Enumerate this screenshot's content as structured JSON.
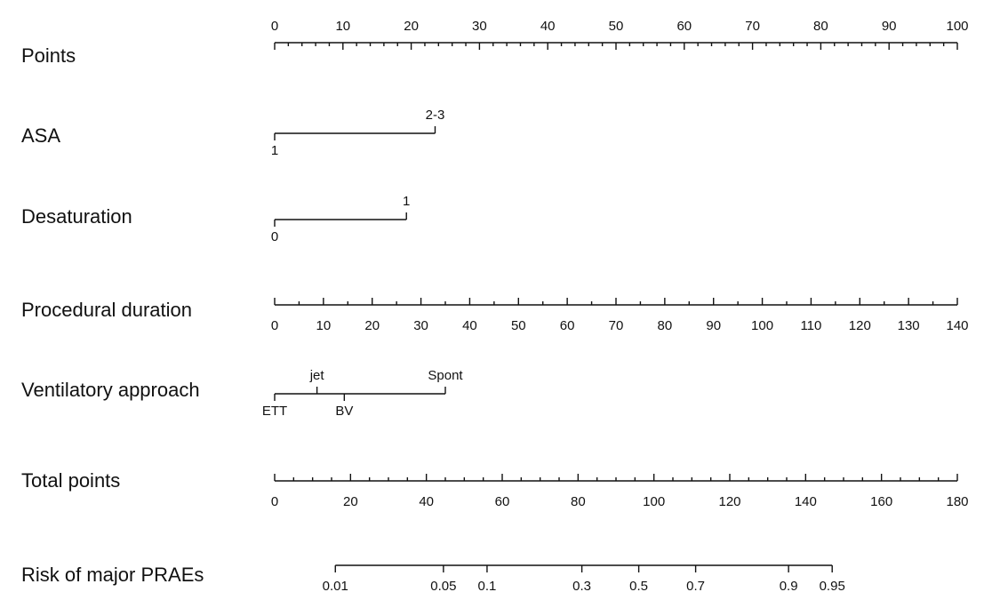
{
  "chart_data": {
    "type": "nomogram",
    "title": "",
    "rows": [
      {
        "label": "Points",
        "scale": "linear",
        "domain": [
          0,
          100
        ],
        "major_ticks": [
          0,
          10,
          20,
          30,
          40,
          50,
          60,
          70,
          80,
          90,
          100
        ],
        "minor_step": 2,
        "labels_side": "above"
      },
      {
        "label": "ASA",
        "kind": "categorical",
        "categories": [
          {
            "name": "1",
            "points": 0,
            "side": "below"
          },
          {
            "name": "2-3",
            "points": 23.5,
            "side": "above"
          }
        ]
      },
      {
        "label": "Desaturation",
        "kind": "categorical",
        "categories": [
          {
            "name": "0",
            "points": 0,
            "side": "below"
          },
          {
            "name": "1",
            "points": 19.3,
            "side": "above"
          }
        ]
      },
      {
        "label": "Procedural duration",
        "scale": "linear",
        "domain": [
          0,
          140
        ],
        "major_ticks": [
          0,
          10,
          20,
          30,
          40,
          50,
          60,
          70,
          80,
          90,
          100,
          110,
          120,
          130,
          140
        ],
        "minor_step": 5,
        "labels_side": "below"
      },
      {
        "label": "Ventilatory approach",
        "kind": "categorical",
        "categories": [
          {
            "name": "ETT",
            "points": 0,
            "side": "below"
          },
          {
            "name": "jet",
            "points": 6.2,
            "side": "above"
          },
          {
            "name": "BV",
            "points": 10.2,
            "side": "below"
          },
          {
            "name": "Spont",
            "points": 25,
            "side": "above"
          }
        ]
      },
      {
        "label": "Total points",
        "scale": "linear",
        "domain": [
          0,
          180
        ],
        "major_ticks": [
          0,
          20,
          40,
          60,
          80,
          100,
          120,
          140,
          160,
          180
        ],
        "minor_step": 5,
        "labels_side": "below"
      },
      {
        "label": "Risk of major PRAEs",
        "kind": "probability",
        "points_domain": [
          0,
          180
        ],
        "ticks": [
          {
            "label": "0.01",
            "total_points": 16
          },
          {
            "label": "0.05",
            "total_points": 44.5
          },
          {
            "label": "0.1",
            "total_points": 56
          },
          {
            "label": "0.3",
            "total_points": 81
          },
          {
            "label": "0.5",
            "total_points": 96
          },
          {
            "label": "0.7",
            "total_points": 111
          },
          {
            "label": "0.9",
            "total_points": 135.5
          },
          {
            "label": "0.95",
            "total_points": 147
          }
        ],
        "labels_side": "below"
      }
    ]
  }
}
